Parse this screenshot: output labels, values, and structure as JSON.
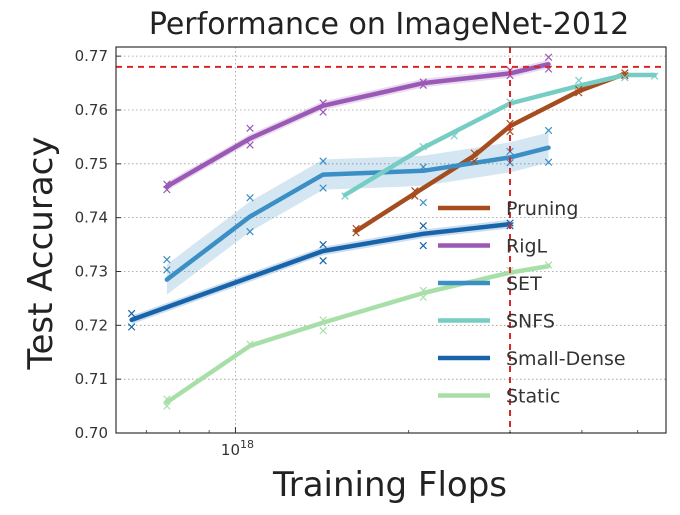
{
  "chart_data": {
    "type": "line",
    "title": "Performance on ImageNet-2012",
    "xlabel": "Training Flops",
    "ylabel": "Test Accuracy",
    "xscale": "log",
    "xlim": [
      6.2e+17,
      5.6e+18
    ],
    "ylim": [
      0.7,
      0.7717
    ],
    "yticks": [
      0.7,
      0.71,
      0.72,
      0.73,
      0.74,
      0.75,
      0.76,
      0.77
    ],
    "ytick_labels": [
      "0.70",
      "0.71",
      "0.72",
      "0.73",
      "0.74",
      "0.75",
      "0.76",
      "0.77"
    ],
    "xticks": [
      1e+18
    ],
    "xtick_labels": [
      {
        "base": "10",
        "exp": "18"
      }
    ],
    "grid": true,
    "legend_position": "lower-right",
    "reference_lines": {
      "horizontal_y": 0.768,
      "vertical_x": 3e+18,
      "color": "#d62728"
    },
    "series": [
      {
        "name": "Pruning",
        "color": "#a64d1f",
        "x": [
          1.62e+18,
          2.05e+18,
          2.6e+18,
          3e+18,
          3.95e+18,
          4.75e+18
        ],
        "y": [
          0.7375,
          0.7445,
          0.7515,
          0.757,
          0.7635,
          0.7667
        ],
        "samples": {
          "x": [
            1.62e+18,
            1.62e+18,
            2.05e+18,
            2.05e+18,
            2.6e+18,
            2.6e+18,
            3e+18,
            3e+18,
            3.95e+18,
            3.95e+18,
            4.75e+18,
            4.75e+18
          ],
          "y": [
            0.7372,
            0.738,
            0.744,
            0.745,
            0.7505,
            0.752,
            0.756,
            0.7575,
            0.7632,
            0.7638,
            0.7664,
            0.7669
          ]
        }
      },
      {
        "name": "RigL",
        "color": "#9b59b6",
        "x": [
          7.6e+17,
          1.06e+18,
          1.42e+18,
          2.12e+18,
          3e+18,
          3.5e+18
        ],
        "y": [
          0.7458,
          0.7547,
          0.7608,
          0.765,
          0.7668,
          0.7685
        ],
        "band": 0.0008,
        "samples": {
          "x": [
            7.6e+17,
            7.6e+17,
            1.06e+18,
            1.06e+18,
            1.42e+18,
            1.42e+18,
            2.12e+18,
            2.12e+18,
            3e+18,
            3e+18,
            3.5e+18,
            3.5e+18
          ],
          "y": [
            0.7452,
            0.7462,
            0.7535,
            0.7566,
            0.7596,
            0.7613,
            0.7646,
            0.7652,
            0.7664,
            0.7674,
            0.7676,
            0.7698
          ]
        }
      },
      {
        "name": "SET",
        "color": "#3b8fc4",
        "x": [
          7.6e+17,
          1.06e+18,
          1.42e+18,
          2.12e+18,
          3e+18,
          3.5e+18
        ],
        "y": [
          0.7285,
          0.7402,
          0.748,
          0.7487,
          0.7512,
          0.753
        ],
        "band": 0.0028,
        "samples": {
          "x": [
            7.6e+17,
            7.6e+17,
            1.06e+18,
            1.06e+18,
            1.42e+18,
            1.42e+18,
            2.12e+18,
            2.12e+18,
            3e+18,
            3e+18,
            3.5e+18,
            3.5e+18
          ],
          "y": [
            0.7322,
            0.7303,
            0.7437,
            0.7374,
            0.7505,
            0.7455,
            0.7494,
            0.7428,
            0.7523,
            0.7502,
            0.7562,
            0.7503
          ]
        }
      },
      {
        "name": "SNFS",
        "color": "#76cdc4",
        "x": [
          1.55e+18,
          2.12e+18,
          3e+18,
          3.95e+18,
          4.75e+18,
          5.35e+18
        ],
        "y": [
          0.7442,
          0.753,
          0.7612,
          0.7645,
          0.7665,
          0.7665
        ],
        "samples": {
          "x": [
            1.55e+18,
            2.12e+18,
            2.4e+18,
            3e+18,
            3.95e+18,
            4.75e+18,
            5.35e+18
          ],
          "y": [
            0.744,
            0.7532,
            0.7552,
            0.7615,
            0.7655,
            0.766,
            0.7663
          ]
        }
      },
      {
        "name": "Small-Dense",
        "color": "#1764ab",
        "x": [
          6.6e+17,
          1.42e+18,
          2.12e+18,
          3e+18
        ],
        "y": [
          0.721,
          0.7338,
          0.737,
          0.7388
        ],
        "band": 0.0008,
        "samples": {
          "x": [
            6.6e+17,
            6.6e+17,
            1.42e+18,
            1.42e+18,
            2.12e+18,
            2.12e+18,
            3e+18,
            3e+18
          ],
          "y": [
            0.7222,
            0.7197,
            0.735,
            0.732,
            0.7385,
            0.7348,
            0.739,
            0.7385
          ]
        }
      },
      {
        "name": "Static",
        "color": "#a8dfa8",
        "x": [
          7.6e+17,
          1.06e+18,
          1.42e+18,
          2.12e+18,
          3e+18,
          3.5e+18
        ],
        "y": [
          0.7057,
          0.7162,
          0.7205,
          0.726,
          0.7298,
          0.731
        ],
        "samples": {
          "x": [
            7.6e+17,
            7.6e+17,
            1.06e+18,
            1.42e+18,
            1.42e+18,
            2.12e+18,
            2.12e+18,
            3e+18,
            3.5e+18
          ],
          "y": [
            0.705,
            0.7063,
            0.7165,
            0.719,
            0.721,
            0.7252,
            0.7265,
            0.7302,
            0.7312
          ]
        }
      }
    ]
  }
}
